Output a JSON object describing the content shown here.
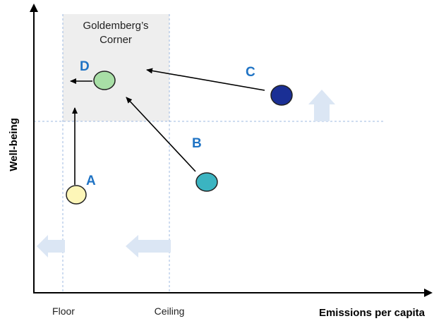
{
  "axes": {
    "x_label": "Emissions per capita",
    "y_label": "Well-being",
    "x_ticks": [
      "Floor",
      "Ceiling"
    ]
  },
  "corner": {
    "line1": "Goldemberg’s",
    "line2": "Corner"
  },
  "points": [
    {
      "id": "A",
      "label": "A",
      "fill": "#fdf6b8"
    },
    {
      "id": "B",
      "label": "B",
      "fill": "#3bb4c1"
    },
    {
      "id": "C",
      "label": "C",
      "fill": "#1a2f95"
    },
    {
      "id": "D",
      "label": "D",
      "fill": "#a8dfa6"
    }
  ],
  "colors": {
    "label": "#1f73c4",
    "guide_line": "#9cb8e0",
    "corner_fill": "#eeeeee",
    "hint_arrow": "#dbe6f4",
    "axis": "#000000"
  }
}
